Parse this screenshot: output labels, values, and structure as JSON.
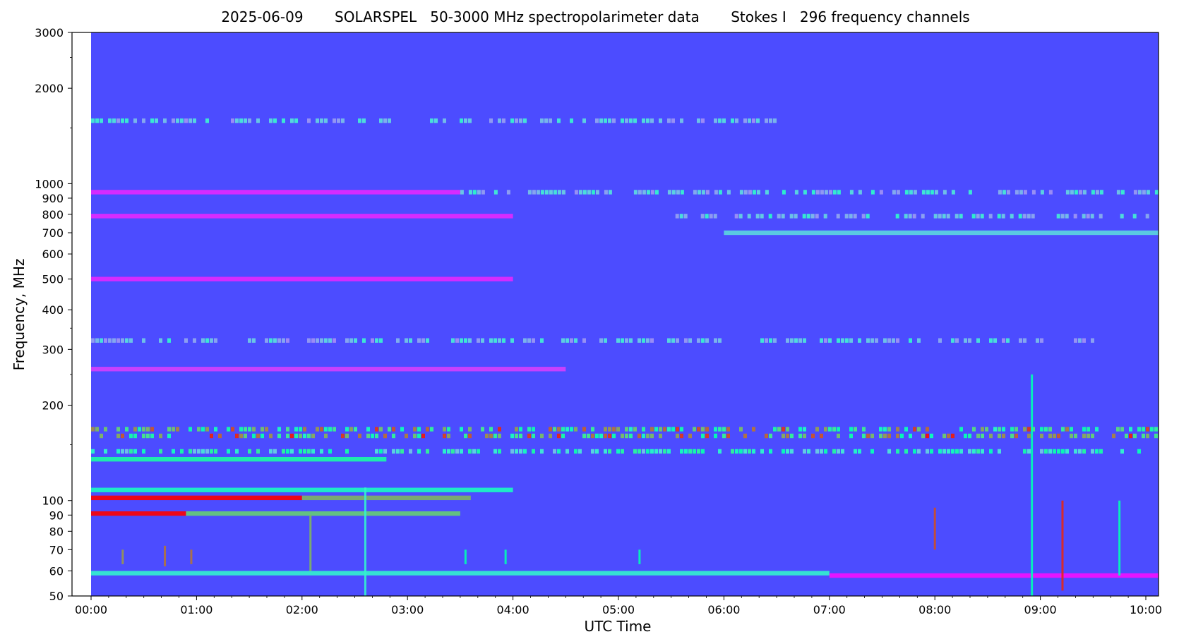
{
  "title": "2025-06-09       SOLARSPEL   50-3000 MHz spectropolarimeter data       Stokes I   296 frequency channels",
  "chart_data": {
    "type": "heatmap",
    "title": "2025-06-09       SOLARSPEL   50-3000 MHz spectropolarimeter data       Stokes I   296 frequency channels",
    "xlabel": "UTC Time",
    "ylabel": "Frequency, MHz",
    "y_scale": "log",
    "ylim": [
      50,
      3000
    ],
    "xlim_hours": [
      0,
      10.33
    ],
    "data_start_hours": 0.0,
    "x_ticks": [
      "00:00",
      "01:00",
      "02:00",
      "03:00",
      "04:00",
      "05:00",
      "06:00",
      "07:00",
      "08:00",
      "09:00",
      "10:00"
    ],
    "y_ticks": [
      50,
      60,
      70,
      80,
      90,
      100,
      200,
      300,
      400,
      500,
      600,
      700,
      800,
      900,
      1000,
      2000,
      3000
    ],
    "colormap": "rainbow",
    "background_color": "#4c4cff",
    "bands": [
      {
        "freq": 1580,
        "start": 0.0,
        "end": 6.5,
        "level": 0.4,
        "patchy": true
      },
      {
        "freq": 940,
        "start": 0.0,
        "end": 3.5,
        "level": 0.05,
        "patchy": false
      },
      {
        "freq": 940,
        "start": 3.5,
        "end": 10.33,
        "level": 0.42,
        "patchy": true
      },
      {
        "freq": 790,
        "start": 0.0,
        "end": 4.0,
        "level": 0.05,
        "patchy": false
      },
      {
        "freq": 790,
        "start": 5.5,
        "end": 10.2,
        "level": 0.42,
        "patchy": true
      },
      {
        "freq": 700,
        "start": 6.0,
        "end": 10.33,
        "level": 0.32,
        "patchy": false
      },
      {
        "freq": 500,
        "start": 0.0,
        "end": 4.0,
        "level": 0.05,
        "patchy": false
      },
      {
        "freq": 320,
        "start": 0.0,
        "end": 9.5,
        "level": 0.4,
        "patchy": true
      },
      {
        "freq": 260,
        "start": 0.0,
        "end": 4.5,
        "level": 0.08,
        "patchy": false
      },
      {
        "freq": 168,
        "start": 0.0,
        "end": 10.33,
        "level": 0.95,
        "patchy": true
      },
      {
        "freq": 160,
        "start": 0.0,
        "end": 10.33,
        "level": 0.98,
        "patchy": true
      },
      {
        "freq": 143,
        "start": 0.0,
        "end": 10.0,
        "level": 0.6,
        "patchy": true
      },
      {
        "freq": 135,
        "start": 0.0,
        "end": 2.8,
        "level": 0.55,
        "patchy": false
      },
      {
        "freq": 108,
        "start": 0.0,
        "end": 4.0,
        "level": 0.45,
        "patchy": false
      },
      {
        "freq": 102,
        "start": 0.0,
        "end": 2.0,
        "level": 1.0,
        "patchy": false
      },
      {
        "freq": 102,
        "start": 2.0,
        "end": 3.6,
        "level": 0.75,
        "patchy": false
      },
      {
        "freq": 91,
        "start": 0.0,
        "end": 0.9,
        "level": 1.0,
        "patchy": false
      },
      {
        "freq": 91,
        "start": 0.9,
        "end": 3.5,
        "level": 0.7,
        "patchy": false
      },
      {
        "freq": 59,
        "start": 0.0,
        "end": 7.0,
        "level": 0.4,
        "patchy": false
      },
      {
        "freq": 58,
        "start": 7.0,
        "end": 10.33,
        "level": 0.02,
        "patchy": false
      }
    ],
    "bursts": [
      {
        "time": 8.92,
        "fmin": 50,
        "fmax": 250,
        "level": 0.5
      },
      {
        "time": 9.21,
        "fmin": 52,
        "fmax": 100,
        "level": 0.95
      },
      {
        "time": 8.0,
        "fmin": 70,
        "fmax": 95,
        "level": 0.9
      },
      {
        "time": 9.75,
        "fmin": 58,
        "fmax": 100,
        "level": 0.5
      },
      {
        "time": 2.08,
        "fmin": 60,
        "fmax": 90,
        "level": 0.75
      },
      {
        "time": 2.6,
        "fmin": 50,
        "fmax": 110,
        "level": 0.4
      },
      {
        "time": 0.7,
        "fmin": 62,
        "fmax": 72,
        "level": 0.85
      },
      {
        "time": 0.95,
        "fmin": 63,
        "fmax": 70,
        "level": 0.85
      },
      {
        "time": 0.3,
        "fmin": 63,
        "fmax": 70,
        "level": 0.8
      },
      {
        "time": 3.55,
        "fmin": 63,
        "fmax": 70,
        "level": 0.5
      },
      {
        "time": 3.93,
        "fmin": 63,
        "fmax": 70,
        "level": 0.5
      },
      {
        "time": 5.2,
        "fmin": 63,
        "fmax": 70,
        "level": 0.5
      }
    ]
  }
}
